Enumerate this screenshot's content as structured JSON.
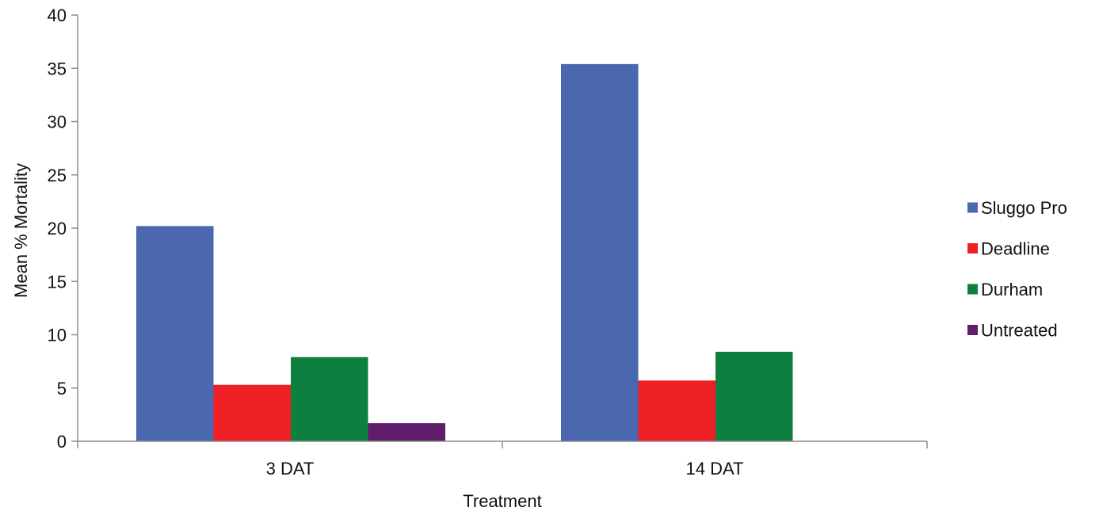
{
  "chart_data": {
    "type": "bar",
    "title": "",
    "xlabel": "Treatment",
    "ylabel": "Mean % Mortality",
    "categories": [
      "3 DAT",
      "14 DAT"
    ],
    "ylim": [
      0,
      40
    ],
    "yticks": [
      0,
      5,
      10,
      15,
      20,
      25,
      30,
      35,
      40
    ],
    "grid": false,
    "legend_position": "right",
    "series": [
      {
        "name": "Sluggo Pro",
        "color": "#4A67B0",
        "values": [
          20.2,
          35.4
        ]
      },
      {
        "name": "Deadline",
        "color": "#EE1F25",
        "values": [
          5.3,
          5.7
        ]
      },
      {
        "name": "Durham",
        "color": "#0D8040",
        "values": [
          7.9,
          8.4
        ]
      },
      {
        "name": "Untreated",
        "color": "#5F1D6B",
        "values": [
          1.7,
          0
        ]
      }
    ]
  }
}
